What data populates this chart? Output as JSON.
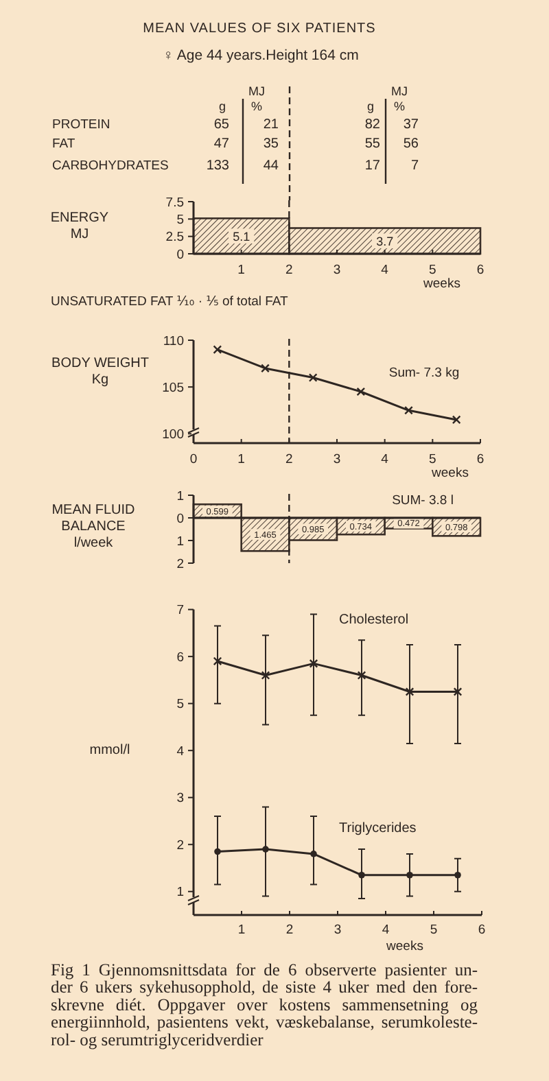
{
  "chart_data": [
    {
      "type": "other",
      "title": "MEAN VALUES OF SIX PATIENTS",
      "subtitle": "♀ Age 44 years.Height 164 cm",
      "categories": [
        "PROTEIN",
        "FAT",
        "CARBOHYDRATES"
      ],
      "series": [
        {
          "name": "g",
          "values": [
            65,
            47,
            133
          ]
        },
        {
          "name": "MJ\n%",
          "values": [
            21,
            35,
            44
          ]
        },
        {
          "name": "g",
          "values": [
            82,
            55,
            17
          ]
        },
        {
          "name": "MJ\n%",
          "values": [
            37,
            56,
            7
          ]
        }
      ],
      "data_labels": true
    },
    {
      "type": "histogram",
      "ylabel": "ENERGY\nMJ",
      "xlabel": "weeks",
      "bins": [
        0,
        2,
        6
      ],
      "values": [
        5.1,
        3.7
      ],
      "color": "#3a2e27",
      "data_labels": true,
      "xlim": [
        0,
        6
      ],
      "ylim": [
        0,
        7.5
      ],
      "xticks": [
        1,
        2,
        3,
        4,
        5,
        6
      ],
      "yticks": [
        0,
        2.5,
        5,
        7.5
      ],
      "ref_lines": [
        {
          "axis": "x",
          "value": 2,
          "line_style": "dashed"
        }
      ],
      "annotations": [
        "UNSATURATED FAT ⅒ · ⅕ of total FAT"
      ]
    },
    {
      "type": "line",
      "ylabel": "BODY WEIGHT\nKg",
      "xlabel": "weeks",
      "x": [
        0.5,
        1.5,
        2.5,
        3.5,
        4.5,
        5.5
      ],
      "values": [
        109,
        107,
        106,
        104.5,
        102.5,
        101.5
      ],
      "color": "#2e2622",
      "marker": "cross",
      "line_style": "solid",
      "xlim": [
        0,
        6
      ],
      "ylim": [
        99,
        110
      ],
      "xticks": [
        0,
        1,
        2,
        3,
        4,
        5,
        6
      ],
      "yticks": [
        100,
        105,
        110
      ],
      "ref_lines": [
        {
          "axis": "x",
          "value": 2,
          "line_style": "dashed"
        }
      ],
      "annotations": [
        "Sum- 7.3 kg"
      ]
    },
    {
      "type": "bar",
      "ylabel": "MEAN FLUID\nBALANCE\nl/week",
      "x": [
        0.5,
        1.5,
        2.5,
        3.5,
        4.5,
        5.5
      ],
      "base": [
        0,
        -1.465,
        -0.985,
        -0.734,
        -0.472,
        -0.798
      ],
      "values": [
        0.599,
        1.465,
        0.985,
        0.734,
        0.472,
        0.798
      ],
      "data_labels": true,
      "color": "#3a2e27",
      "xlim": [
        0,
        6
      ],
      "ylim": [
        -2,
        1
      ],
      "yticks": [
        {
          "value": -2,
          "label": "2"
        },
        {
          "value": -1,
          "label": "1"
        },
        0,
        1
      ],
      "tick_labels": "y",
      "ref_lines": [
        {
          "axis": "x",
          "value": 2,
          "line_style": "dashed"
        }
      ],
      "annotations": [
        "SUM- 3.8 l"
      ]
    },
    {
      "type": "line",
      "ylabel": "mmol/l",
      "xlabel": "weeks",
      "x": [
        0.5,
        1.5,
        2.5,
        3.5,
        4.5,
        5.5
      ],
      "xlim": [
        0,
        6
      ],
      "ylim": [
        0.5,
        7
      ],
      "xticks": [
        1,
        2,
        3,
        4,
        5,
        6
      ],
      "yticks": [
        1,
        2,
        3,
        4,
        5,
        6,
        7
      ],
      "line_style": "solid",
      "series": [
        {
          "name": "Cholesterol",
          "color": "#2e2622",
          "marker": "cross",
          "values": [
            5.9,
            5.6,
            5.85,
            5.6,
            5.25,
            5.25
          ],
          "errors": [
            [
              5,
              6.65
            ],
            [
              4.55,
              6.45
            ],
            [
              4.75,
              6.9
            ],
            [
              4.75,
              6.35
            ],
            [
              4.15,
              6.25
            ],
            [
              4.15,
              6.25
            ]
          ]
        },
        {
          "name": "Triglycerides",
          "color": "#2e2622",
          "marker": "circle",
          "values": [
            1.85,
            1.9,
            1.8,
            1.35,
            1.35,
            1.35
          ],
          "errors": [
            [
              1.15,
              2.6
            ],
            [
              0.9,
              2.8
            ],
            [
              1.15,
              2.6
            ],
            [
              0.85,
              1.9
            ],
            [
              0.9,
              1.8
            ],
            [
              1,
              1.7
            ]
          ]
        }
      ],
      "annotations": [
        "Fig 1 Gjennomsnittsdata for de 6 observerte pasienter un-\nder 6 ukers sykehusopphold, de siste 4 uker med den fore-\nskrevne diét. Oppgaver over kostens sammensetning og\nenergiinnhold, pasientens vekt, væskebalanse, serumkoleste-\nrol- og serumtriglyceridverdier"
      ]
    }
  ]
}
